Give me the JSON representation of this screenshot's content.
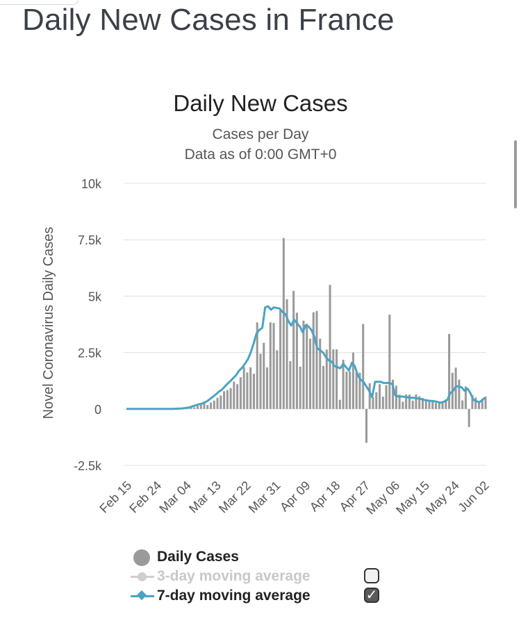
{
  "page": {
    "title": "Daily New Cases in France"
  },
  "chart_data": {
    "type": "bar",
    "title": "Daily New Cases",
    "subtitle_lines": [
      "Cases per Day",
      "Data as of 0:00 GMT+0"
    ],
    "xlabel": "",
    "ylabel": "Novel Coronavirus Daily Cases",
    "ylim": [
      -2500,
      10000
    ],
    "y_ticks": [
      10000,
      7500,
      5000,
      2500,
      0,
      -2500
    ],
    "y_tick_labels": [
      "10k",
      "7.5k",
      "5k",
      "2.5k",
      "0",
      "-2.5k"
    ],
    "x_tick_labels": [
      "Feb 15",
      "Feb 24",
      "Mar 04",
      "Mar 13",
      "Mar 22",
      "Mar 31",
      "Apr 09",
      "Apr 18",
      "Apr 27",
      "May 06",
      "May 15",
      "May 24",
      "Jun 02"
    ],
    "x_tick_interval_days": 9,
    "grid": true,
    "legend_position": "bottom",
    "series": [
      {
        "name": "Daily Cases",
        "kind": "bar",
        "color": "#9a9a9a",
        "values": [
          0,
          0,
          0,
          0,
          0,
          0,
          0,
          0,
          0,
          0,
          0,
          0,
          2,
          0,
          1,
          6,
          19,
          43,
          30,
          61,
          73,
          138,
          190,
          336,
          177,
          286,
          372,
          497,
          595,
          785,
          838,
          924,
          1210,
          1097,
          1404,
          1861,
          1617,
          1847,
          1559,
          3838,
          2446,
          2931,
          1842,
          3838,
          3809,
          2599,
          4376,
          7578,
          4861,
          2116,
          5233,
          4267,
          1873,
          3912,
          3777,
          3114,
          4286,
          4342,
          3114,
          1909,
          2633,
          5497,
          2641,
          2641,
          405,
          2183,
          1653,
          1653,
          2500,
          1607,
          1607,
          3764,
          -1500,
          1139,
          516,
          741,
          1096,
          541,
          1054,
          4183,
          1300,
          1030,
          634,
          319,
          642,
          636,
          367,
          640,
          558,
          482,
          429,
          377,
          331,
          267,
          270,
          338,
          420,
          3325,
          1600,
          1830,
          1300,
          380,
          1000,
          -800,
          611,
          507,
          300,
          450,
          550
        ],
        "legend_label": "Daily Cases"
      },
      {
        "name": "3-day moving average",
        "kind": "line",
        "color": "#cfcfcf",
        "visible": false,
        "legend_label": "3-day moving average"
      },
      {
        "name": "7-day moving average",
        "kind": "line",
        "color": "#4aa3c5",
        "visible": true,
        "values": [
          0,
          0,
          0,
          0,
          0,
          0,
          0,
          0,
          0,
          0,
          0,
          0,
          0,
          0,
          0,
          1,
          4,
          10,
          14,
          23,
          33,
          52,
          78,
          124,
          160,
          206,
          232,
          280,
          350,
          450,
          550,
          650,
          770,
          850,
          990,
          1120,
          1240,
          1380,
          1500,
          1700,
          1830,
          2000,
          2200,
          2500,
          2900,
          3350,
          3500,
          3600,
          4500,
          4550,
          4400,
          4500,
          4480,
          4450,
          4300,
          4200,
          3900,
          3700,
          3950,
          3800,
          3650,
          3400,
          3700,
          3650,
          3500,
          3200,
          2700,
          2600,
          2500,
          2300,
          2150,
          2100,
          1900,
          1850,
          1800,
          2000,
          1850,
          1700,
          2050,
          1900,
          1500,
          1300,
          1200,
          1000,
          800,
          520,
          1200,
          1200,
          1200,
          1150,
          1150,
          1150,
          1100,
          600,
          550,
          550,
          540,
          520,
          500,
          500,
          480,
          460,
          440,
          400,
          380,
          360,
          350,
          330,
          300,
          280,
          330,
          400,
          700,
          800,
          1000,
          1000,
          950,
          800,
          900,
          700,
          400,
          350,
          300,
          380,
          500
        ]
      }
    ]
  },
  "legend": {
    "items": [
      {
        "label": "Daily Cases",
        "color": "#222222",
        "toggle": null
      },
      {
        "label": "3-day moving average",
        "color": "#c8c8c8",
        "toggle": false
      },
      {
        "label": "7-day moving average",
        "color": "#222222",
        "toggle": true
      }
    ]
  },
  "colors": {
    "grid": "#e0e0e0",
    "text": "#555555",
    "bar": "#9a9a9a",
    "line": "#4aa3c5"
  }
}
